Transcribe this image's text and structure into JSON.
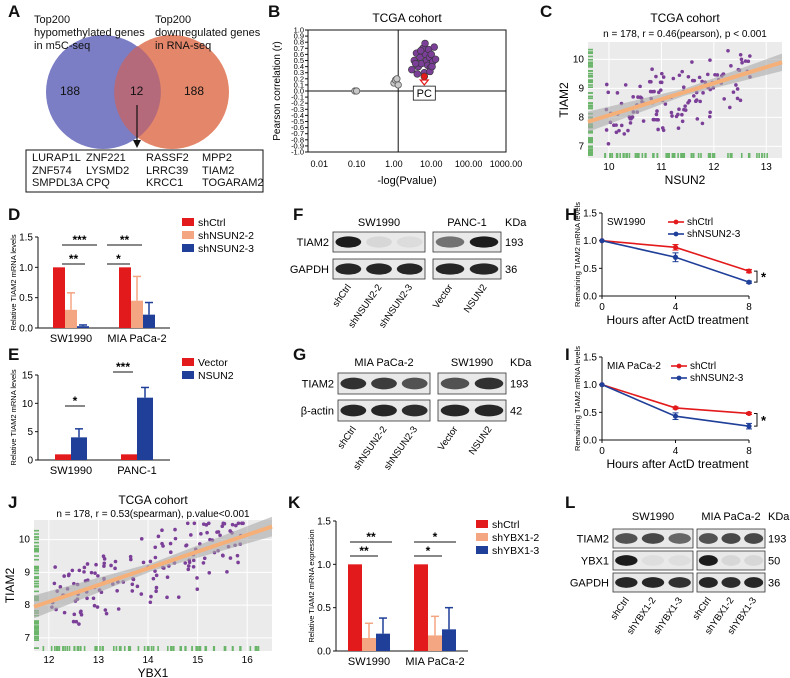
{
  "panel_letters": [
    "A",
    "B",
    "C",
    "D",
    "E",
    "F",
    "G",
    "H",
    "I",
    "J",
    "K",
    "L"
  ],
  "colors": {
    "shCtrl": "#e31a1c",
    "sh2": "#f4a582",
    "sh3": "#1f3f99",
    "vector": "#e31a1c",
    "nsun2": "#1f3f99",
    "venn_left": "#7b7ec4",
    "venn_right": "#e3866a",
    "dots": "#7b3f98",
    "rug": "#6ab56a",
    "fit": "#f5b07a"
  },
  "venn": {
    "left_label": "Top200 hypomethylated genes in m5C-seq",
    "right_label": "Top200 downregulated genes in RNA-seq",
    "left_only": "188",
    "overlap": "12",
    "right_only": "188",
    "genes": [
      "LURAP1L",
      "ZNF221",
      "RASSF2",
      "MPP2",
      "ZNF574",
      "LYSMD2",
      "LRRC39",
      "TIAM2",
      "SMPDL3A",
      "CPQ",
      "KRCC1",
      "TOGARAM2"
    ]
  },
  "chart_data": [
    {
      "panel": "B",
      "type": "scatter",
      "title": "TCGA cohort",
      "xlabel": "-log(Pvalue)",
      "ylabel": "Pearson correlation (r)",
      "xscale": "log",
      "xticks": [
        "0.01",
        "0.10",
        "1.00",
        "10.00",
        "100.00",
        "1000.00"
      ],
      "yticks": [
        "1.0",
        "0.9",
        "0.8",
        "0.7",
        "0.6",
        "0.5",
        "0.4",
        "0.3",
        "0.2",
        "0.1",
        "0.0",
        "-0.1",
        "-0.2",
        "-0.3",
        "-0.4",
        "-0.5",
        "-0.6",
        "-0.7",
        "-0.8",
        "-0.9",
        "-1.0"
      ],
      "annotation": "PC",
      "xlim": [
        0.005,
        1000
      ],
      "ylim": [
        -1,
        1
      ],
      "threshold_x": 1.3
    },
    {
      "panel": "C",
      "type": "scatter",
      "title": "TCGA cohort",
      "stats": "n = 178, r = 0.46(pearson), p < 0.001",
      "xlabel": "NSUN2",
      "ylabel": "TIAM2",
      "xticks": [
        "10",
        "11",
        "12",
        "13"
      ],
      "yticks": [
        "10",
        "9",
        "8",
        "7"
      ],
      "xlim": [
        9.6,
        13.3
      ],
      "ylim": [
        6.6,
        10.6
      ],
      "fit": [
        [
          9.6,
          7.85
        ],
        [
          13.3,
          9.9
        ]
      ]
    },
    {
      "panel": "D",
      "type": "bar",
      "ylabel": "Relative TIAM2 mRNA levels",
      "categories": [
        "SW1990",
        "MIA PaCa-2"
      ],
      "series": [
        {
          "name": "shCtrl",
          "values": [
            1.0,
            1.0
          ],
          "err": [
            0,
            0
          ]
        },
        {
          "name": "shNSUN2-2",
          "values": [
            0.3,
            0.45
          ],
          "err": [
            0.28,
            0.4
          ]
        },
        {
          "name": "shNSUN2-3",
          "values": [
            0.03,
            0.22
          ],
          "err": [
            0.02,
            0.2
          ]
        }
      ],
      "ylim": [
        0,
        1.5
      ],
      "yticks": [
        "0.0",
        "0.5",
        "1.0",
        "1.5"
      ],
      "sig": [
        "**",
        "***",
        "*",
        "**"
      ]
    },
    {
      "panel": "E",
      "type": "bar",
      "ylabel": "Relative TIAM2 mRNA levels",
      "categories": [
        "SW1990",
        "PANC-1"
      ],
      "series": [
        {
          "name": "Vector",
          "values": [
            1.0,
            1.0
          ],
          "err": [
            0,
            0
          ]
        },
        {
          "name": "NSUN2",
          "values": [
            4.0,
            11.0
          ],
          "err": [
            1.5,
            1.8
          ]
        }
      ],
      "ylim": [
        0,
        15
      ],
      "yticks": [
        "0",
        "5",
        "10",
        "15"
      ],
      "sig": [
        "*",
        "***"
      ]
    },
    {
      "panel": "H",
      "type": "line",
      "cell": "SW1990",
      "xlabel": "Hours after ActD treatment",
      "ylabel": "Remaining TIAM2 mRNA levels",
      "x": [
        0,
        4,
        8
      ],
      "series": [
        {
          "name": "shCtrl",
          "values": [
            1.0,
            0.88,
            0.45
          ],
          "err": [
            0,
            0.05,
            0.03
          ]
        },
        {
          "name": "shNSUN2-3",
          "values": [
            1.0,
            0.7,
            0.25
          ],
          "err": [
            0,
            0.08,
            0.02
          ]
        }
      ],
      "ylim": [
        0,
        1.5
      ],
      "yticks": [
        "0.0",
        "0.5",
        "1.0",
        "1.5"
      ],
      "xticks": [
        "0",
        "4",
        "8"
      ],
      "sig": "*"
    },
    {
      "panel": "I",
      "type": "line",
      "cell": "MIA PaCa-2",
      "xlabel": "Hours after ActD treatment",
      "ylabel": "Remaining TIAM2 mRNA levels",
      "x": [
        0,
        4,
        8
      ],
      "series": [
        {
          "name": "shCtrl",
          "values": [
            1.0,
            0.58,
            0.48
          ],
          "err": [
            0,
            0.02,
            0.02
          ]
        },
        {
          "name": "shNSUN2-3",
          "values": [
            1.0,
            0.43,
            0.25
          ],
          "err": [
            0,
            0.06,
            0.05
          ]
        }
      ],
      "ylim": [
        0,
        1.5
      ],
      "yticks": [
        "0.0",
        "0.5",
        "1.0",
        "1.5"
      ],
      "xticks": [
        "0",
        "4",
        "8"
      ],
      "sig": "*"
    },
    {
      "panel": "J",
      "type": "scatter",
      "title": "TCGA cohort",
      "stats": "n = 178, r = 0.53(spearman), p.value<0.001",
      "xlabel": "YBX1",
      "ylabel": "TIAM2",
      "xticks": [
        "12",
        "13",
        "14",
        "15",
        "16"
      ],
      "yticks": [
        "10",
        "9",
        "8",
        "7"
      ],
      "xlim": [
        11.7,
        16.5
      ],
      "ylim": [
        6.6,
        10.6
      ],
      "fit": [
        [
          11.7,
          7.95
        ],
        [
          16.5,
          10.4
        ]
      ]
    },
    {
      "panel": "K",
      "type": "bar",
      "ylabel": "Relative TIAM2 mRNA expression",
      "categories": [
        "SW1990",
        "MIA PaCa-2"
      ],
      "series": [
        {
          "name": "shCtrl",
          "values": [
            1.0,
            1.0
          ],
          "err": [
            0,
            0
          ]
        },
        {
          "name": "shYBX1-2",
          "values": [
            0.15,
            0.18
          ],
          "err": [
            0.17,
            0.22
          ]
        },
        {
          "name": "shYBX1-3",
          "values": [
            0.2,
            0.25
          ],
          "err": [
            0.18,
            0.25
          ]
        }
      ],
      "ylim": [
        0,
        1.5
      ],
      "yticks": [
        "0.0",
        "0.5",
        "1.0",
        "1.5"
      ],
      "sig": [
        "**",
        "**",
        "*",
        "*"
      ]
    }
  ],
  "blots": {
    "F": {
      "left_title": "SW1990",
      "right_title": "PANC-1",
      "kda": "KDa",
      "rows": [
        "TIAM2",
        "GAPDH"
      ],
      "sizes": [
        "193",
        "36"
      ],
      "lanes_left": [
        "shCtrl",
        "shNSUN2-2",
        "shNSUN2-3"
      ],
      "lanes_right": [
        "Vector",
        "NSUN2"
      ]
    },
    "G": {
      "left_title": "MIA PaCa-2",
      "right_title": "SW1990",
      "kda": "KDa",
      "rows": [
        "TIAM2",
        "β-actin"
      ],
      "sizes": [
        "193",
        "42"
      ],
      "lanes_left": [
        "shCtrl",
        "shNSUN2-2",
        "shNSUN2-3"
      ],
      "lanes_right": [
        "Vector",
        "NSUN2"
      ]
    },
    "L": {
      "left_title": "SW1990",
      "right_title": "MIA PaCa-2",
      "kda": "KDa",
      "rows": [
        "TIAM2",
        "YBX1",
        "GAPDH"
      ],
      "sizes": [
        "193",
        "50",
        "36"
      ],
      "lanes_left": [
        "shCtrl",
        "shYBX1-2",
        "shYBX1-3"
      ],
      "lanes_right": [
        "shCtrl",
        "shYBX1-2",
        "shYBX1-3"
      ]
    }
  }
}
